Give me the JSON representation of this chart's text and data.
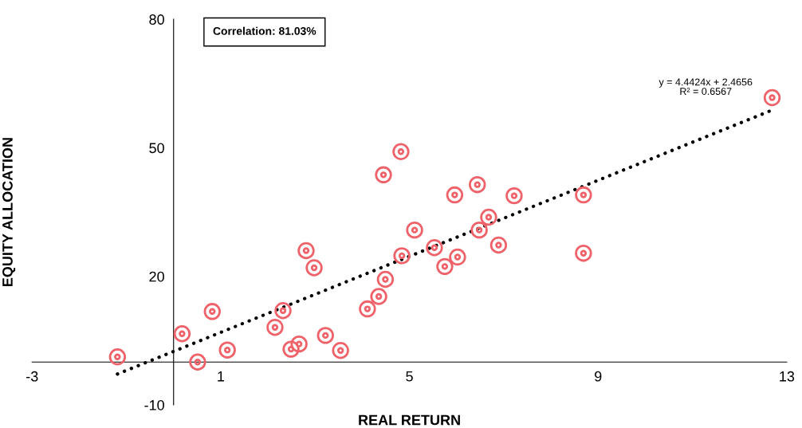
{
  "chart_data": {
    "type": "scatter",
    "xlabel": "REAL RETURN",
    "ylabel": "EQUITY ALLOCATION",
    "xlim": [
      -3,
      13
    ],
    "xticks": [
      -3,
      1,
      5,
      9,
      13
    ],
    "ylim": [
      -10,
      80
    ],
    "yticks": [
      -10,
      20,
      50,
      80
    ],
    "grid": false,
    "legend": false,
    "annotations": [
      "Correlation: 81.03%",
      {
        "text": "y = 4.4424x + 2.4656\nR² = 0.6567",
        "x": 12.69,
        "y": 58.8
      }
    ],
    "series": [
      {
        "color": "#f0626a",
        "marker": "circle",
        "x": [
          -1.19,
          0.18,
          0.51,
          0.82,
          1.14,
          2.15,
          2.32,
          2.49,
          2.66,
          2.81,
          2.98,
          3.22,
          3.54,
          4.11,
          4.35,
          4.45,
          4.49,
          4.82,
          4.84,
          5.11,
          5.53,
          5.75,
          5.96,
          6.02,
          6.44,
          6.48,
          6.68,
          6.89,
          7.22,
          8.69,
          8.69,
          12.69
        ],
        "values": [
          1.2,
          6.6,
          0,
          11.8,
          2.8,
          8.1,
          12.0,
          3.0,
          4.2,
          26.0,
          22.0,
          6.2,
          2.7,
          12.4,
          15.3,
          43.7,
          19.3,
          49.1,
          24.8,
          30.8,
          26.7,
          22.3,
          39.0,
          24.5,
          41.4,
          30.8,
          33.8,
          27.3,
          38.8,
          39.0,
          25.4,
          61.7
        ]
      },
      {
        "type": "line",
        "color": "#000000",
        "marker": "none",
        "line_style": "dotted",
        "x": [
          -1.19,
          12.69
        ],
        "values": [
          -2.8,
          58.8
        ]
      }
    ]
  }
}
